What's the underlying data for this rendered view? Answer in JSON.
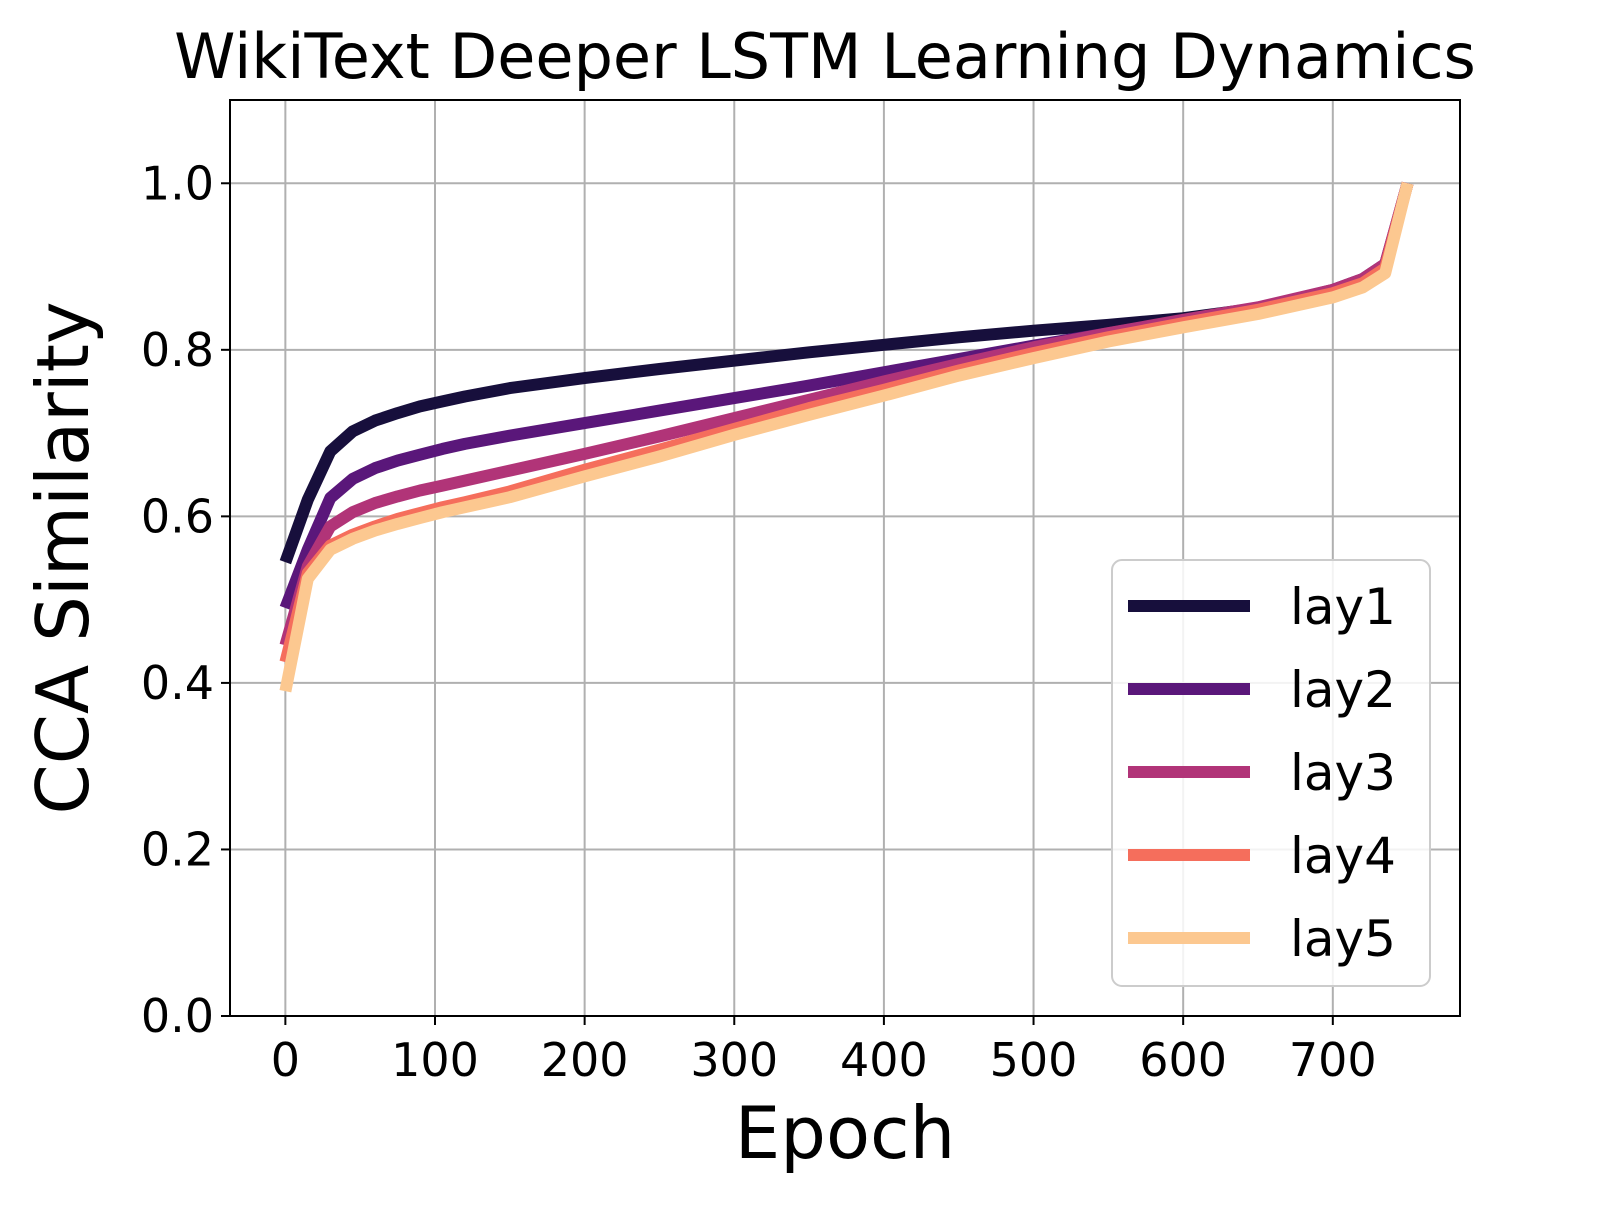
{
  "chart_data": {
    "type": "line",
    "title": "WikiText Deeper LSTM Learning Dynamics",
    "xlabel": "Epoch",
    "ylabel": "CCA Similarity",
    "xlim": [
      -37,
      785
    ],
    "ylim": [
      0.0,
      1.1
    ],
    "xticks": [
      0,
      100,
      200,
      300,
      400,
      500,
      600,
      700
    ],
    "xtick_labels": [
      "0",
      "100",
      "200",
      "300",
      "400",
      "500",
      "600",
      "700"
    ],
    "yticks": [
      0.0,
      0.2,
      0.4,
      0.6,
      0.8,
      1.0
    ],
    "ytick_labels": [
      "0.0",
      "0.2",
      "0.4",
      "0.6",
      "0.8",
      "1.0"
    ],
    "grid": true,
    "legend_position": "lower-right",
    "x": [
      0,
      15,
      30,
      45,
      60,
      75,
      90,
      105,
      120,
      150,
      200,
      250,
      300,
      350,
      400,
      450,
      500,
      550,
      600,
      650,
      700,
      720,
      735,
      750
    ],
    "series": [
      {
        "name": "lay1",
        "color": "#170f3c",
        "values": [
          0.545,
          0.62,
          0.678,
          0.702,
          0.715,
          0.724,
          0.732,
          0.738,
          0.744,
          0.754,
          0.766,
          0.777,
          0.787,
          0.797,
          0.806,
          0.815,
          0.823,
          0.83,
          0.838,
          0.85,
          0.87,
          0.883,
          0.9,
          1.0
        ]
      },
      {
        "name": "lay2",
        "color": "#5a177a",
        "values": [
          0.49,
          0.56,
          0.622,
          0.645,
          0.658,
          0.667,
          0.674,
          0.681,
          0.687,
          0.697,
          0.712,
          0.727,
          0.742,
          0.757,
          0.773,
          0.789,
          0.805,
          0.82,
          0.835,
          0.85,
          0.872,
          0.885,
          0.903,
          1.0
        ]
      },
      {
        "name": "lay3",
        "color": "#b13478",
        "values": [
          0.445,
          0.54,
          0.588,
          0.605,
          0.616,
          0.624,
          0.631,
          0.637,
          0.643,
          0.655,
          0.675,
          0.696,
          0.718,
          0.74,
          0.762,
          0.783,
          0.803,
          0.82,
          0.836,
          0.851,
          0.872,
          0.885,
          0.903,
          1.0
        ]
      },
      {
        "name": "lay4",
        "color": "#f56e5c",
        "values": [
          0.425,
          0.532,
          0.565,
          0.578,
          0.588,
          0.597,
          0.604,
          0.611,
          0.617,
          0.63,
          0.656,
          0.68,
          0.705,
          0.73,
          0.752,
          0.775,
          0.796,
          0.815,
          0.832,
          0.848,
          0.868,
          0.88,
          0.898,
          1.0
        ]
      },
      {
        "name": "lay5",
        "color": "#fcc890",
        "values": [
          0.39,
          0.525,
          0.56,
          0.573,
          0.583,
          0.591,
          0.598,
          0.605,
          0.611,
          0.623,
          0.648,
          0.672,
          0.698,
          0.722,
          0.745,
          0.769,
          0.79,
          0.81,
          0.827,
          0.843,
          0.863,
          0.875,
          0.892,
          1.0
        ]
      }
    ]
  }
}
